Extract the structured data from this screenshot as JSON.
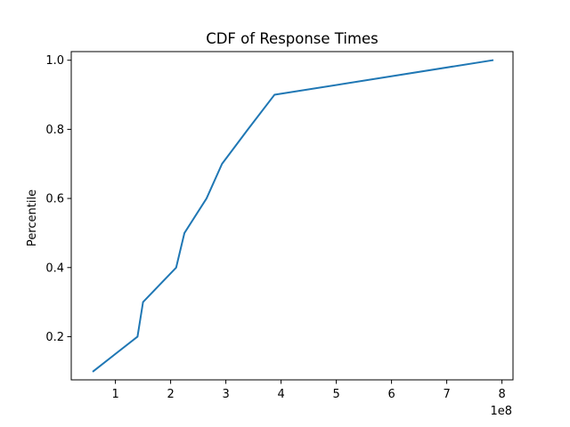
{
  "chart_data": {
    "type": "line",
    "title": "CDF of Response Times",
    "xlabel": "",
    "ylabel": "Percentile",
    "x_offset_label": "1e8",
    "xlim": [
      0.2,
      8.2
    ],
    "ylim": [
      0.075,
      1.025
    ],
    "x_ticks": [
      1,
      2,
      3,
      4,
      5,
      6,
      7,
      8
    ],
    "x_tick_labels": [
      "1",
      "2",
      "3",
      "4",
      "5",
      "6",
      "7",
      "8"
    ],
    "y_ticks": [
      0.2,
      0.4,
      0.6,
      0.8,
      1.0
    ],
    "y_tick_labels": [
      "0.2",
      "0.4",
      "0.6",
      "0.8",
      "1.0"
    ],
    "grid": false,
    "line_color": "#1f77b4",
    "series": [
      {
        "x": [
          0.6,
          1.4,
          1.5,
          2.1,
          2.25,
          2.65,
          2.93,
          3.4,
          3.88,
          7.83
        ],
        "y": [
          0.1,
          0.2,
          0.3,
          0.4,
          0.5,
          0.6,
          0.7,
          0.8,
          0.9,
          1.0
        ]
      }
    ]
  }
}
